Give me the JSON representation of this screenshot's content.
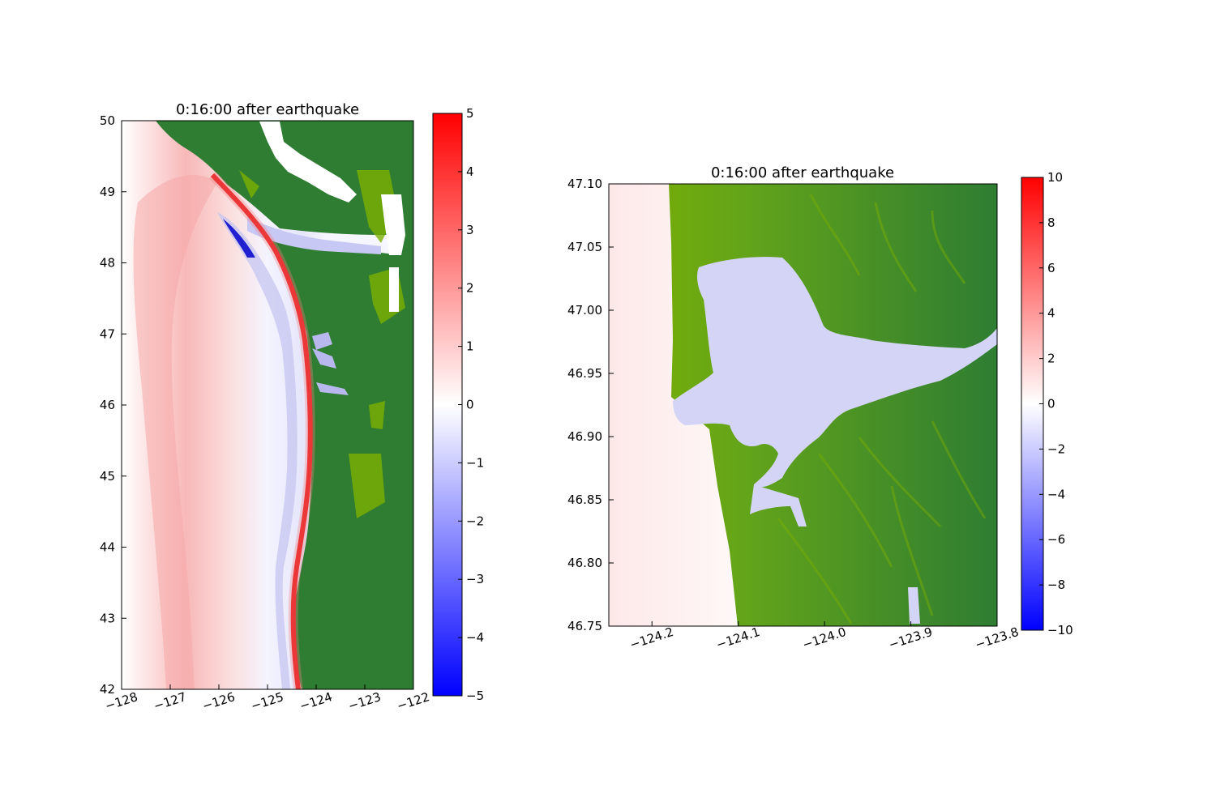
{
  "chart_data": [
    {
      "type": "heatmap",
      "title": "0:16:00 after earthquake",
      "xlabel": "",
      "ylabel": "",
      "xlim": [
        -128,
        -122
      ],
      "ylim": [
        42,
        50
      ],
      "xticks": [
        "−128",
        "−127",
        "−126",
        "−125",
        "−124",
        "−123",
        "−122"
      ],
      "yticks": [
        "42",
        "43",
        "44",
        "45",
        "46",
        "47",
        "48",
        "49",
        "50"
      ],
      "colorbar": {
        "range": [
          -5,
          5
        ],
        "ticks": [
          "−5",
          "−4",
          "−3",
          "−2",
          "−1",
          "0",
          "1",
          "2",
          "3",
          "4",
          "5"
        ]
      },
      "colors": {
        "positive": "#ff0000",
        "negative": "#0000ff",
        "land": "#2e7d32",
        "land_light": "#7cb000"
      }
    },
    {
      "type": "heatmap",
      "title": "0:16:00 after earthquake",
      "xlabel": "",
      "ylabel": "",
      "xlim": [
        -124.25,
        -123.8
      ],
      "ylim": [
        46.75,
        47.1
      ],
      "xticks": [
        "−124.2",
        "−124.1",
        "−124.0",
        "−123.9",
        "−123.8"
      ],
      "yticks": [
        "46.75",
        "46.80",
        "46.85",
        "46.90",
        "46.95",
        "47.00",
        "47.05",
        "47.10"
      ],
      "colorbar": {
        "range": [
          -10,
          10
        ],
        "ticks": [
          "−10",
          "−8",
          "−6",
          "−4",
          "−2",
          "0",
          "2",
          "4",
          "6",
          "8",
          "10"
        ]
      },
      "colors": {
        "positive": "#ff0000",
        "negative": "#0000ff",
        "land": "#2e7d32",
        "land_light": "#7cb000"
      }
    }
  ]
}
